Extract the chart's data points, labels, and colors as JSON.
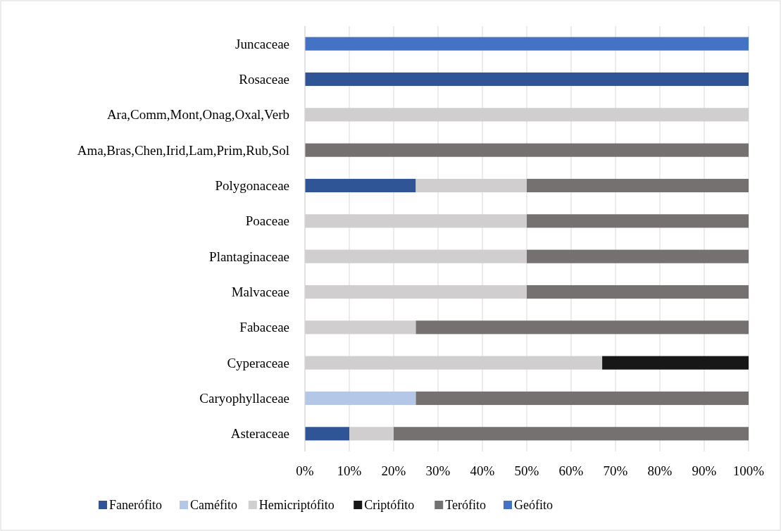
{
  "chart_data": {
    "type": "bar",
    "orientation": "horizontal",
    "stacked": true,
    "categories": [
      "Juncaceae",
      "Rosaceae",
      "Ara,Comm,Mont,Onag,Oxal,Verb",
      "Ama,Bras,Chen,Irid,Lam,Prim,Rub,Sol",
      "Polygonaceae",
      "Poaceae",
      "Plantaginaceae",
      "Malvaceae",
      "Fabaceae",
      "Cyperaceae",
      "Caryophyllaceae",
      "Asteraceae"
    ],
    "series": [
      {
        "name": "Fanerófito",
        "color": "#2f5597",
        "values": [
          null,
          100,
          null,
          null,
          25,
          null,
          null,
          null,
          null,
          null,
          null,
          10
        ]
      },
      {
        "name": "Caméfito",
        "color": "#b4c7e7",
        "values": [
          null,
          null,
          null,
          null,
          null,
          null,
          null,
          null,
          null,
          null,
          25,
          null
        ]
      },
      {
        "name": "Hemicriptófito",
        "color": "#d0cece",
        "values": [
          null,
          null,
          100,
          null,
          25,
          50,
          50,
          50,
          25,
          67,
          null,
          10
        ]
      },
      {
        "name": "Criptófito",
        "color": "#171717",
        "values": [
          null,
          null,
          null,
          null,
          null,
          null,
          null,
          null,
          null,
          33,
          null,
          null
        ]
      },
      {
        "name": "Terófito",
        "color": "#767171",
        "values": [
          null,
          null,
          null,
          100,
          50,
          50,
          50,
          50,
          75,
          null,
          75,
          80
        ]
      },
      {
        "name": "Geófito",
        "color": "#4472c4",
        "values": [
          100,
          null,
          null,
          null,
          null,
          null,
          null,
          null,
          null,
          null,
          null,
          null
        ]
      }
    ],
    "xlim": [
      0,
      100
    ],
    "xticks": [
      {
        "value": 0,
        "label": "0%"
      },
      {
        "value": 10,
        "label": "10%"
      },
      {
        "value": 20,
        "label": "20%"
      },
      {
        "value": 30,
        "label": "30%"
      },
      {
        "value": 40,
        "label": "40%"
      },
      {
        "value": 50,
        "label": "50%"
      },
      {
        "value": 60,
        "label": "60%"
      },
      {
        "value": 70,
        "label": "70%"
      },
      {
        "value": 80,
        "label": "80%"
      },
      {
        "value": 90,
        "label": "90%"
      },
      {
        "value": 100,
        "label": "100%"
      }
    ],
    "grid": "x",
    "legend": "bottom"
  }
}
